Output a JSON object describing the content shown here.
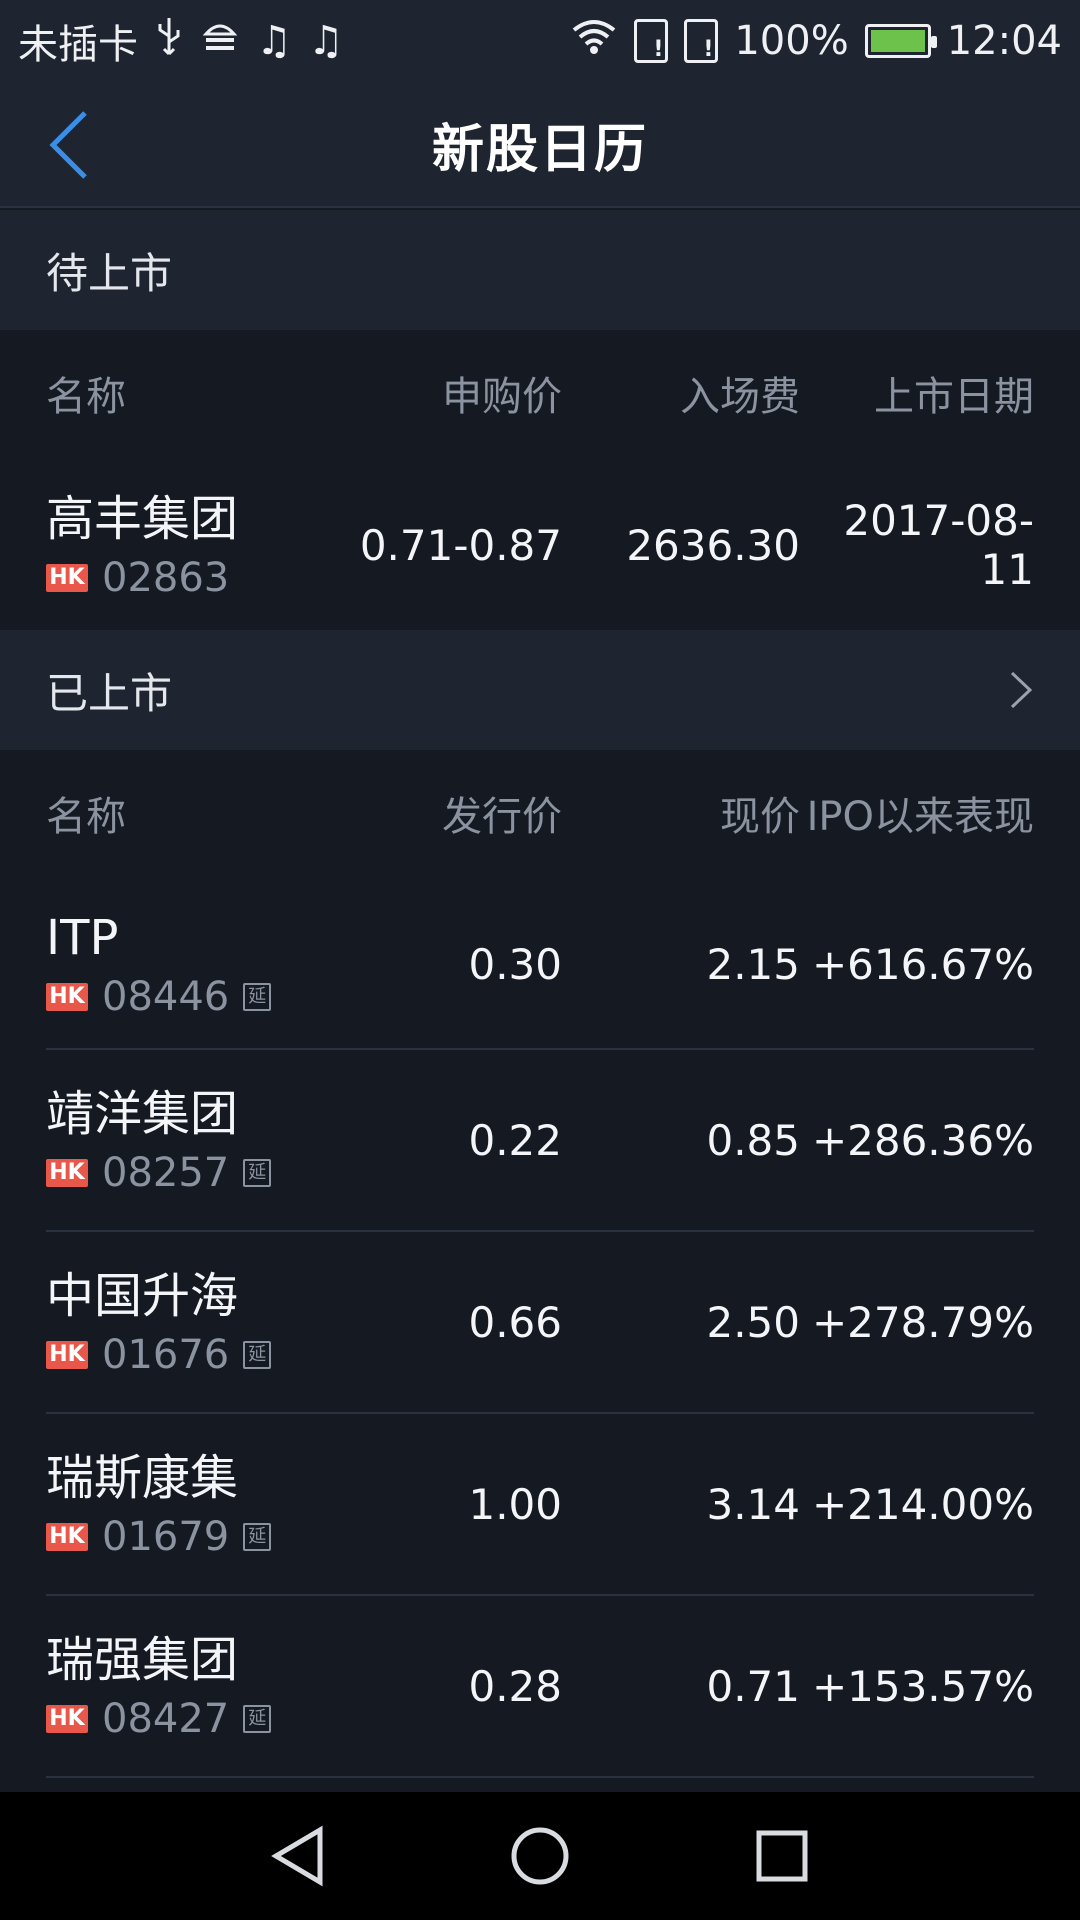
{
  "status_bar": {
    "carrier": "未插卡",
    "battery": "100%",
    "time": "12:04",
    "icons": [
      "usb-icon",
      "android-icon",
      "music-note-icon",
      "music-note-icon",
      "wifi-icon",
      "sim-alert-icon",
      "sim-alert-icon",
      "battery-charging-icon"
    ]
  },
  "header": {
    "title": "新股日历",
    "back_icon": "chevron-left-icon"
  },
  "upcoming": {
    "section_title": "待上市",
    "columns": [
      "名称",
      "申购价",
      "入场费",
      "上市日期"
    ],
    "rows": [
      {
        "name": "高丰集团",
        "market": "HK",
        "code": "02863",
        "price": "0.71-0.87",
        "fee": "2636.30",
        "date": "2017-08-11"
      }
    ]
  },
  "listed": {
    "section_title": "已上市",
    "columns": [
      "名称",
      "发行价",
      "现价",
      "IPO以来表现"
    ],
    "rows": [
      {
        "name": "ITP",
        "market": "HK",
        "code": "08446",
        "delay": "延",
        "issue": "0.30",
        "current": "2.15",
        "perf": "+616.67%"
      },
      {
        "name": "靖洋集团",
        "market": "HK",
        "code": "08257",
        "delay": "延",
        "issue": "0.22",
        "current": "0.85",
        "perf": "+286.36%"
      },
      {
        "name": "中国升海",
        "market": "HK",
        "code": "01676",
        "delay": "延",
        "issue": "0.66",
        "current": "2.50",
        "perf": "+278.79%"
      },
      {
        "name": "瑞斯康集",
        "market": "HK",
        "code": "01679",
        "delay": "延",
        "issue": "1.00",
        "current": "3.14",
        "perf": "+214.00%"
      },
      {
        "name": "瑞强集团",
        "market": "HK",
        "code": "08427",
        "delay": "延",
        "issue": "0.28",
        "current": "0.71",
        "perf": "+153.57%"
      }
    ]
  },
  "colors": {
    "accent": "#3a8ee6",
    "hk_badge": "#e9574a",
    "battery_fill": "#6cc24a",
    "background": "#151922",
    "panel": "#1f2530"
  }
}
